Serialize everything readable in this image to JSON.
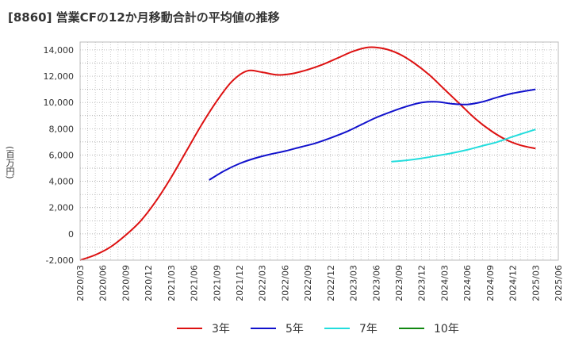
{
  "title": "[8860]  営業CFの12か月移動合計の平均値の推移",
  "chart_data": {
    "type": "line",
    "title": "[8860]  営業CFの12か月移動合計の平均値の推移",
    "xlabel": "",
    "ylabel": "(百万円)",
    "ylim": [
      -2000,
      14600
    ],
    "yticks": [
      -2000,
      0,
      2000,
      4000,
      6000,
      8000,
      10000,
      12000,
      14000
    ],
    "ytick_labels": [
      "-2,000",
      "0",
      "2,000",
      "4,000",
      "6,000",
      "8,000",
      "10,000",
      "12,000",
      "14,000"
    ],
    "xticks": [
      "2020/03",
      "2020/06",
      "2020/09",
      "2020/12",
      "2021/03",
      "2021/06",
      "2021/09",
      "2021/12",
      "2022/03",
      "2022/06",
      "2022/09",
      "2022/12",
      "2023/03",
      "2023/06",
      "2023/09",
      "2023/12",
      "2024/03",
      "2024/06",
      "2024/09",
      "2024/12",
      "2025/03",
      "2025/06"
    ],
    "grid": true,
    "legend_position": "bottom",
    "series": [
      {
        "name": "3年",
        "color": "#dd1111",
        "x": [
          "2020/03",
          "2020/05",
          "2020/07",
          "2020/09",
          "2020/11",
          "2021/01",
          "2021/03",
          "2021/05",
          "2021/07",
          "2021/09",
          "2021/11",
          "2022/01",
          "2022/03",
          "2022/05",
          "2022/07",
          "2022/09",
          "2022/11",
          "2023/01",
          "2023/03",
          "2023/05",
          "2023/07",
          "2023/09",
          "2023/11",
          "2024/01",
          "2024/03",
          "2024/05",
          "2024/07",
          "2024/09",
          "2024/11",
          "2025/01",
          "2025/03"
        ],
        "values": [
          -2000,
          -1600,
          -1000,
          -100,
          1000,
          2500,
          4300,
          6300,
          8300,
          10100,
          11600,
          12400,
          12300,
          12100,
          12200,
          12500,
          12900,
          13400,
          13900,
          14200,
          14100,
          13700,
          13000,
          12100,
          11000,
          9900,
          8800,
          7900,
          7200,
          6750,
          6500
        ]
      },
      {
        "name": "5年",
        "color": "#1111cc",
        "x": [
          "2021/08",
          "2021/10",
          "2021/12",
          "2022/02",
          "2022/04",
          "2022/06",
          "2022/08",
          "2022/10",
          "2022/12",
          "2023/02",
          "2023/04",
          "2023/06",
          "2023/08",
          "2023/10",
          "2023/12",
          "2024/02",
          "2024/04",
          "2024/06",
          "2024/08",
          "2024/10",
          "2024/12",
          "2025/03"
        ],
        "values": [
          4100,
          4800,
          5350,
          5750,
          6050,
          6300,
          6600,
          6900,
          7300,
          7750,
          8300,
          8850,
          9300,
          9700,
          10000,
          10050,
          9900,
          9850,
          10050,
          10400,
          10700,
          11000
        ]
      },
      {
        "name": "7年",
        "color": "#22dddd",
        "x": [
          "2023/08",
          "2023/10",
          "2023/12",
          "2024/02",
          "2024/04",
          "2024/06",
          "2024/08",
          "2024/10",
          "2024/12",
          "2025/03"
        ],
        "values": [
          5500,
          5600,
          5750,
          5950,
          6150,
          6400,
          6700,
          7000,
          7400,
          7950
        ]
      },
      {
        "name": "10年",
        "color": "#118811",
        "x": [],
        "values": []
      }
    ]
  }
}
